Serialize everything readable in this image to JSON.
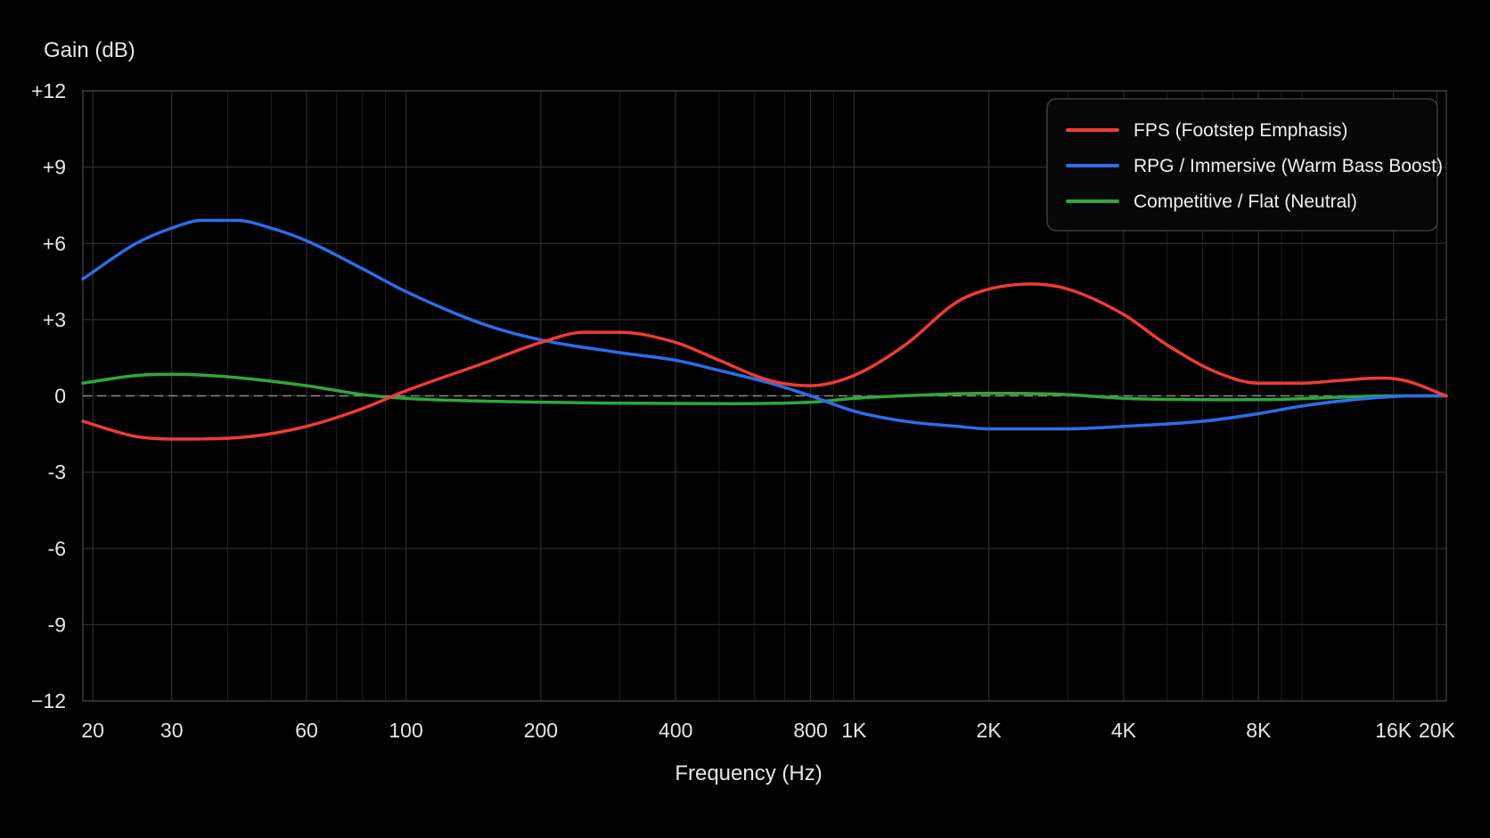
{
  "chart_data": {
    "type": "line",
    "title": "",
    "xlabel": "Frequency (Hz)",
    "ylabel": "Gain (dB)",
    "xscale": "log",
    "xlim": [
      19,
      21000
    ],
    "ylim": [
      -12,
      12
    ],
    "yticks": [
      12,
      9,
      6,
      3,
      0,
      -3,
      -6,
      -9,
      -12
    ],
    "ytick_labels": [
      "+12",
      "+9",
      "+6",
      "+3",
      "0",
      "-3",
      "-6",
      "-9",
      "−12"
    ],
    "xticks": [
      20,
      30,
      60,
      100,
      200,
      400,
      800,
      1000,
      2000,
      4000,
      8000,
      16000,
      20000
    ],
    "xtick_labels": [
      "20",
      "30",
      "60",
      "100",
      "200",
      "400",
      "800",
      "1K",
      "2K",
      "4K",
      "8K",
      "16K",
      "20K"
    ],
    "grid": true,
    "zero_line": "dashed",
    "legend_position": "top-right",
    "series": [
      {
        "name": "FPS (Footstep Emphasis)",
        "color": "#ef3b33",
        "x": [
          19,
          25,
          33,
          45,
          60,
          80,
          100,
          150,
          200,
          250,
          300,
          400,
          500,
          650,
          800,
          1000,
          1300,
          1700,
          2000,
          2500,
          3000,
          4000,
          5000,
          6500,
          8000,
          10000,
          12000,
          15000,
          17000,
          21000
        ],
        "y": [
          -1.0,
          -1.6,
          -1.7,
          -1.6,
          -1.2,
          -0.5,
          0.2,
          1.3,
          2.1,
          2.5,
          2.5,
          2.1,
          1.4,
          0.6,
          0.4,
          0.8,
          2.0,
          3.7,
          4.2,
          4.4,
          4.2,
          3.2,
          2.0,
          0.9,
          0.5,
          0.5,
          0.6,
          0.7,
          0.6,
          0.0
        ]
      },
      {
        "name": "RPG / Immersive (Warm Bass Boost)",
        "color": "#2d6de8",
        "x": [
          19,
          25,
          30,
          35,
          42,
          50,
          60,
          80,
          100,
          150,
          200,
          300,
          400,
          500,
          650,
          800,
          1000,
          1300,
          1700,
          2000,
          3000,
          4000,
          6000,
          8000,
          10000,
          14000,
          18000,
          21000
        ],
        "y": [
          4.6,
          6.0,
          6.6,
          6.9,
          6.9,
          6.6,
          6.1,
          5.0,
          4.1,
          2.8,
          2.2,
          1.7,
          1.4,
          1.0,
          0.5,
          0.0,
          -0.6,
          -1.0,
          -1.2,
          -1.3,
          -1.3,
          -1.2,
          -1.0,
          -0.7,
          -0.4,
          -0.1,
          0.0,
          0.0
        ]
      },
      {
        "name": "Competitive / Flat (Neutral)",
        "color": "#2ea83a",
        "x": [
          19,
          25,
          30,
          40,
          60,
          80,
          100,
          200,
          400,
          800,
          1000,
          1500,
          2000,
          3000,
          4000,
          8000,
          16000,
          21000
        ],
        "y": [
          0.5,
          0.8,
          0.85,
          0.75,
          0.4,
          0.05,
          -0.1,
          -0.25,
          -0.3,
          -0.25,
          -0.1,
          0.05,
          0.1,
          0.05,
          -0.1,
          -0.15,
          0.0,
          0.0
        ]
      }
    ]
  }
}
